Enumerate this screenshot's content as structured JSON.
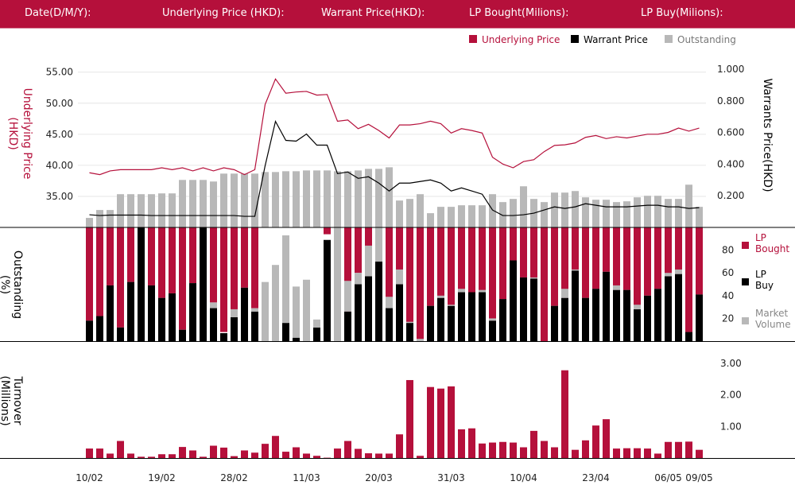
{
  "header": {
    "date_label": "Date(D/M/Y):",
    "underlying_label": "Underlying Price (HKD):",
    "warrant_label": "Warrant  Price(HKD):",
    "lp_bought_label": "LP Bought(Milions):",
    "lp_buy_label": "LP Buy(Milions):"
  },
  "colors": {
    "header_bg": "#b5103b",
    "underlying": "#b5103b",
    "warrant": "#000000",
    "outstanding": "#b8b8b8",
    "lp_bought": "#b5103b",
    "lp_buy": "#000000",
    "market_volume": "#b8b8b8",
    "turnover": "#b5103b"
  },
  "chart_data": {
    "type": "bar",
    "x_tick_labels": [
      "10/02",
      "19/02",
      "28/02",
      "11/03",
      "20/03",
      "31/03",
      "10/04",
      "23/04",
      "06/05",
      "09/05"
    ],
    "x_tick_index": [
      0,
      7,
      14,
      21,
      28,
      35,
      42,
      49,
      56,
      59
    ],
    "top_panel": {
      "legend": [
        "Underlying Price",
        "Warrant  Price",
        "Outstanding"
      ],
      "legend_position": "top-right",
      "ylabel_left": "Underlying Price (HKD)",
      "ylabel_right": "Warrants  Price(HKD)",
      "left_ticks": [
        "55.00",
        "50.00",
        "45.00",
        "40.00",
        "35.00"
      ],
      "left_tick_values": [
        55,
        50,
        45,
        40,
        35
      ],
      "right_ticks": [
        "1.000",
        "0.800",
        "0.600",
        "0.400",
        "0.200"
      ],
      "right_tick_values": [
        1.0,
        0.8,
        0.6,
        0.4,
        0.2
      ],
      "ylim_left": [
        30,
        56.5
      ],
      "ylim_right": [
        0,
        1.04
      ],
      "grid": true,
      "underlying_price": [
        38.8,
        38.5,
        39.1,
        39.3,
        39.3,
        39.3,
        39.3,
        39.6,
        39.3,
        39.6,
        39.1,
        39.6,
        39.1,
        39.6,
        39.3,
        38.5,
        39.3,
        49.8,
        53.9,
        51.6,
        51.8,
        51.9,
        51.3,
        51.4,
        47.1,
        47.3,
        45.9,
        46.6,
        45.6,
        44.4,
        46.5,
        46.5,
        46.7,
        47.1,
        46.7,
        45.2,
        45.9,
        45.6,
        45.2,
        41.3,
        40.2,
        39.6,
        40.6,
        40.9,
        42.2,
        43.2,
        43.3,
        43.6,
        44.5,
        44.8,
        44.3,
        44.6,
        44.4,
        44.7,
        45.0,
        45.0,
        45.3,
        46.0,
        45.5,
        46.0
      ],
      "warrant_price": [
        0.08,
        0.075,
        0.078,
        0.078,
        0.078,
        0.078,
        0.075,
        0.075,
        0.075,
        0.075,
        0.075,
        0.075,
        0.075,
        0.075,
        0.075,
        0.07,
        0.07,
        0.39,
        0.67,
        0.55,
        0.545,
        0.59,
        0.52,
        0.52,
        0.34,
        0.35,
        0.31,
        0.32,
        0.28,
        0.23,
        0.28,
        0.28,
        0.29,
        0.3,
        0.28,
        0.23,
        0.25,
        0.23,
        0.21,
        0.11,
        0.075,
        0.075,
        0.08,
        0.09,
        0.11,
        0.13,
        0.12,
        0.13,
        0.15,
        0.14,
        0.13,
        0.13,
        0.13,
        0.135,
        0.14,
        0.14,
        0.13,
        0.13,
        0.12,
        0.125
      ],
      "outstanding": [
        0.06,
        0.11,
        0.11,
        0.21,
        0.21,
        0.21,
        0.21,
        0.215,
        0.215,
        0.3,
        0.3,
        0.3,
        0.29,
        0.34,
        0.34,
        0.34,
        0.34,
        0.35,
        0.35,
        0.355,
        0.355,
        0.36,
        0.36,
        0.36,
        0.355,
        0.355,
        0.36,
        0.37,
        0.37,
        0.38,
        0.17,
        0.18,
        0.21,
        0.09,
        0.13,
        0.13,
        0.14,
        0.14,
        0.14,
        0.21,
        0.16,
        0.18,
        0.26,
        0.18,
        0.16,
        0.22,
        0.22,
        0.23,
        0.19,
        0.175,
        0.175,
        0.16,
        0.165,
        0.19,
        0.2,
        0.2,
        0.18,
        0.18,
        0.27,
        0.13
      ]
    },
    "middle_panel": {
      "ylabel": "Outstanding (%)",
      "ticks": [
        "80",
        "60",
        "40",
        "20"
      ],
      "tick_values": [
        80,
        60,
        40,
        20
      ],
      "ylim": [
        0,
        100
      ],
      "legend": [
        "LP Bought",
        "LP Buy",
        "Market Volume"
      ],
      "legend_position": "right",
      "lp_bought": [
        82,
        78,
        51,
        88,
        48,
        0,
        51,
        62,
        58,
        90,
        49,
        0,
        66,
        92,
        72,
        53,
        71,
        0,
        0,
        0,
        0,
        0,
        0,
        6,
        0,
        74,
        40,
        34,
        0,
        71,
        50,
        84,
        100,
        69,
        62,
        69,
        57,
        57,
        57,
        82,
        63,
        29,
        44,
        45,
        100,
        69,
        62,
        38,
        62,
        54,
        39,
        55,
        55,
        69,
        60,
        54,
        43,
        41,
        92,
        59
      ],
      "lp_buy": [
        18,
        22,
        49,
        12,
        52,
        100,
        49,
        38,
        42,
        10,
        51,
        100,
        29,
        7,
        21,
        47,
        26,
        0,
        0,
        16,
        3,
        0,
        12,
        89,
        0,
        26,
        50,
        57,
        70,
        29,
        50,
        16,
        0,
        31,
        38,
        31,
        43,
        43,
        43,
        18,
        37,
        71,
        56,
        55,
        0,
        31,
        38,
        62,
        38,
        46,
        61,
        45,
        45,
        28,
        40,
        46,
        57,
        59,
        8,
        41
      ],
      "market_volume": [
        0,
        0,
        0,
        0,
        0,
        0,
        0,
        0,
        0,
        0,
        0,
        0,
        5,
        0,
        7,
        0,
        3,
        52,
        67,
        77,
        45,
        54,
        7,
        0,
        100,
        27,
        10,
        27,
        36,
        10,
        13,
        1,
        2,
        0,
        2,
        1,
        3,
        0,
        2,
        2,
        0,
        0,
        0,
        1,
        0,
        0,
        8,
        1,
        0,
        0,
        0,
        4,
        0,
        4,
        0,
        0,
        3,
        4,
        0,
        0
      ]
    },
    "bottom_panel": {
      "ylabel": "Turnover (Millions)",
      "ticks": [
        "3.00",
        "2.00",
        "1.00"
      ],
      "tick_values": [
        3,
        2,
        1
      ],
      "ylim": [
        0,
        3.2
      ],
      "turnover": [
        0.3,
        0.3,
        0.14,
        0.54,
        0.14,
        0.04,
        0.04,
        0.12,
        0.12,
        0.35,
        0.24,
        0.04,
        0.39,
        0.33,
        0.06,
        0.24,
        0.17,
        0.45,
        0.7,
        0.2,
        0.34,
        0.14,
        0.07,
        0.01,
        0.3,
        0.54,
        0.29,
        0.15,
        0.14,
        0.14,
        0.75,
        2.47,
        0.07,
        2.25,
        2.2,
        2.27,
        0.91,
        0.94,
        0.46,
        0.49,
        0.51,
        0.49,
        0.34,
        0.86,
        0.54,
        0.34,
        2.78,
        0.26,
        0.56,
        1.03,
        1.23,
        0.3,
        0.31,
        0.31,
        0.3,
        0.14,
        0.51,
        0.51,
        0.52,
        0.26
      ]
    }
  }
}
